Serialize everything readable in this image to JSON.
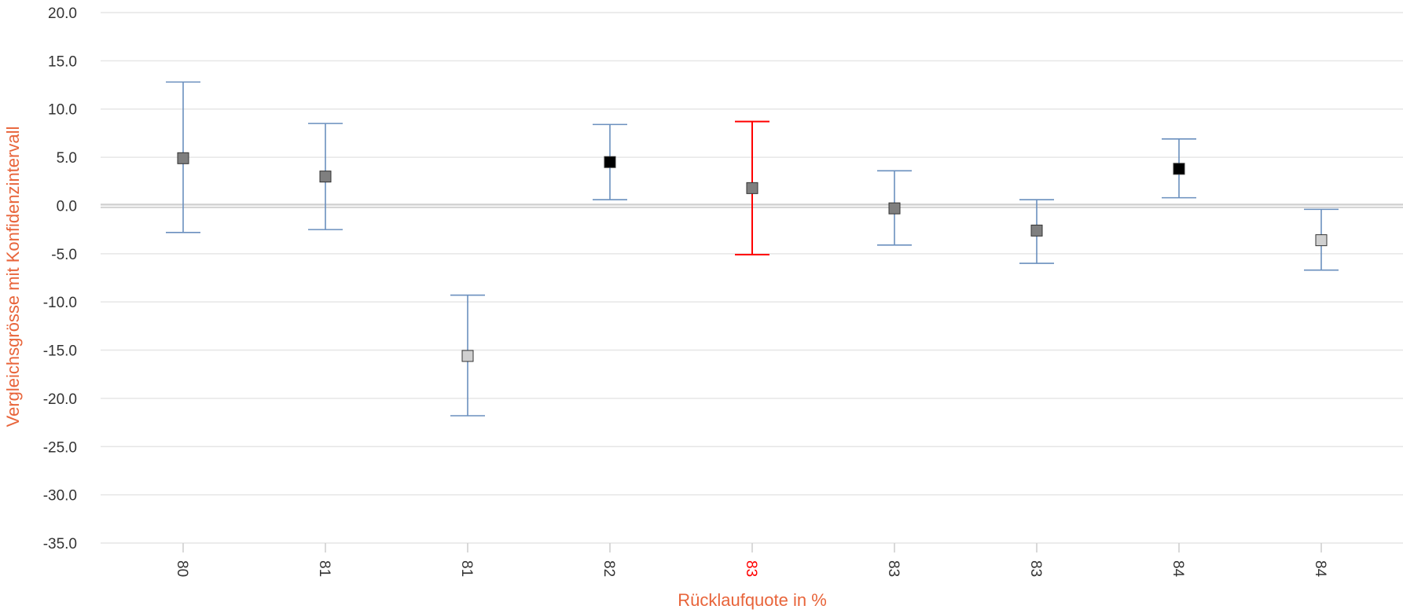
{
  "chart_data": {
    "type": "scatter",
    "title": "",
    "xlabel": "Rücklaufquote in %",
    "ylabel": "Vergleichsgrösse mit Konfidenzintervall",
    "ylim": [
      -35,
      20
    ],
    "yticks": [
      "20.0",
      "15.0",
      "10.0",
      "5.0",
      "0.0",
      "-5.0",
      "-10.0",
      "-15.0",
      "-20.0",
      "-25.0",
      "-30.0",
      "-35.0"
    ],
    "grid": true,
    "reference_line": 0,
    "categories": [
      "80",
      "81",
      "81",
      "82",
      "83",
      "83",
      "83",
      "84",
      "84"
    ],
    "points": [
      {
        "x": "80",
        "value": 4.9,
        "ci_low": -2.8,
        "ci_high": 12.8,
        "marker_color": "#7f7f7f",
        "ci_color": "#6a8fbe"
      },
      {
        "x": "81",
        "value": 3.0,
        "ci_low": -2.5,
        "ci_high": 8.5,
        "marker_color": "#7f7f7f",
        "ci_color": "#6a8fbe"
      },
      {
        "x": "81",
        "value": -15.6,
        "ci_low": -21.8,
        "ci_high": -9.3,
        "marker_color": "#d0d0d0",
        "ci_color": "#6a8fbe"
      },
      {
        "x": "82",
        "value": 4.5,
        "ci_low": 0.6,
        "ci_high": 8.4,
        "marker_color": "#000000",
        "ci_color": "#6a8fbe"
      },
      {
        "x": "83",
        "value": 1.8,
        "ci_low": -5.1,
        "ci_high": 8.7,
        "marker_color": "#7f7f7f",
        "ci_color": "#ff0000",
        "highlighted": true
      },
      {
        "x": "83",
        "value": -0.3,
        "ci_low": -4.1,
        "ci_high": 3.6,
        "marker_color": "#7f7f7f",
        "ci_color": "#6a8fbe"
      },
      {
        "x": "83",
        "value": -2.6,
        "ci_low": -6.0,
        "ci_high": 0.6,
        "marker_color": "#7f7f7f",
        "ci_color": "#6a8fbe"
      },
      {
        "x": "84",
        "value": 3.8,
        "ci_low": 0.8,
        "ci_high": 6.9,
        "marker_color": "#000000",
        "ci_color": "#6a8fbe"
      },
      {
        "x": "84",
        "value": -3.6,
        "ci_low": -6.7,
        "ci_high": -0.4,
        "marker_color": "#d0d0d0",
        "ci_color": "#6a8fbe"
      }
    ],
    "colors": {
      "axis_title": "#e8643a",
      "highlight": "#ff0000",
      "grid": "#e6e6e6",
      "tick_label": "#333333"
    }
  }
}
